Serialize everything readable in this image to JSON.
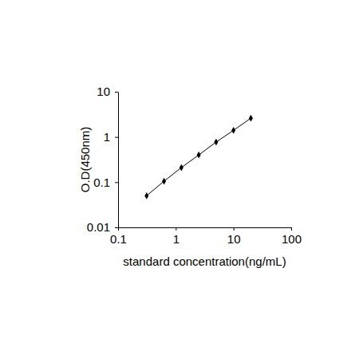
{
  "chart_data": {
    "type": "line",
    "marker": "diamond",
    "color": "#000000",
    "log": true,
    "x_label": "standard concentration(ng/mL)",
    "y_label": "O.D(450nm)",
    "x": [
      0.3125,
      0.625,
      1.25,
      2.5,
      5,
      10,
      20
    ],
    "values": [
      0.05,
      0.105,
      0.21,
      0.4,
      0.77,
      1.4,
      2.6
    ],
    "xlim": [
      0.1,
      100
    ],
    "xticks": [
      0.1,
      1,
      10,
      100
    ],
    "ylim": [
      0.01,
      10
    ],
    "yticks": [
      0.01,
      0.1,
      1,
      10
    ]
  }
}
